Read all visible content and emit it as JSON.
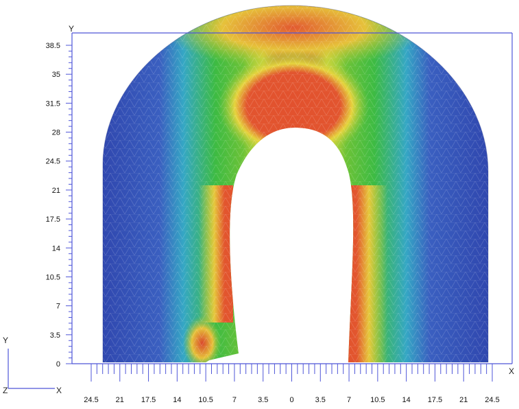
{
  "viewer": {
    "y_tick_labels": [
      "38.5",
      "35",
      "31.5",
      "28",
      "24.5",
      "21",
      "17.5",
      "14",
      "10.5",
      "7",
      "3.5",
      "0"
    ],
    "x_tick_labels": [
      "24.5",
      "21",
      "17.5",
      "14",
      "10.5",
      "7",
      "3.5",
      "0",
      "3.5",
      "7",
      "10.5",
      "14",
      "17.5",
      "21",
      "24.5"
    ],
    "frame_axis_labels": {
      "y": "Y",
      "x": "X"
    },
    "triad_labels": {
      "y": "Y",
      "z": "Z",
      "x": "X"
    }
  },
  "colors": {
    "background": "#ffffff",
    "frame": "#4e55d8",
    "scale_low": "#3a50b8",
    "scale_mid_low": "#36b4c8",
    "scale_mid": "#3cbd3a",
    "scale_mid_high": "#e9e23c",
    "scale_high": "#e0502c",
    "mesh": "#ffffff"
  }
}
